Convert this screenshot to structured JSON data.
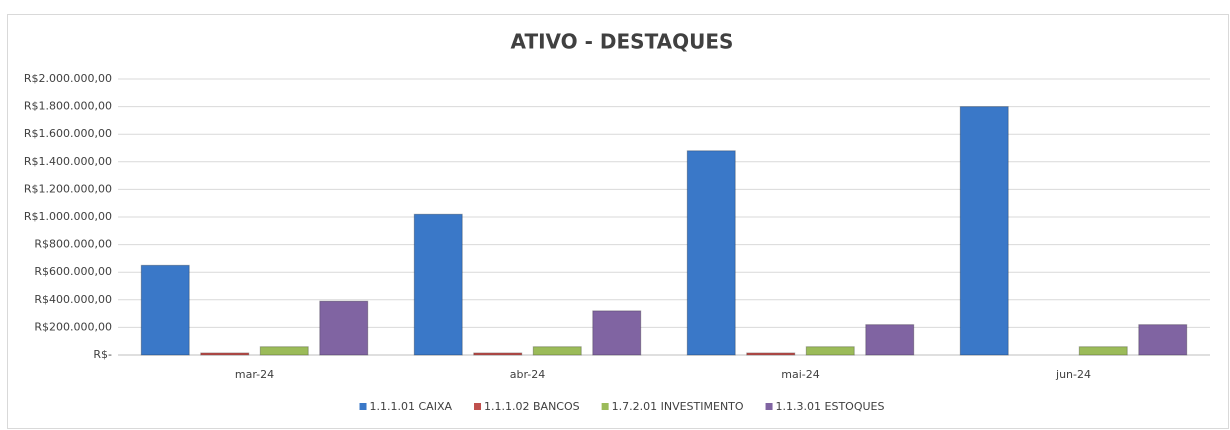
{
  "chart_data": {
    "type": "bar",
    "title": "ATIVO - DESTAQUES",
    "categories": [
      "mar-24",
      "abr-24",
      "mai-24",
      "jun-24"
    ],
    "series": [
      {
        "name": "1.1.1.01 CAIXA",
        "color": "#3a78c8",
        "values": [
          650000,
          1020000,
          1480000,
          1800000
        ]
      },
      {
        "name": "1.1.1.02 BANCOS",
        "color": "#c0504d",
        "values": [
          15000,
          15000,
          15000,
          0
        ]
      },
      {
        "name": "1.7.2.01 INVESTIMENTO",
        "color": "#9bbb59",
        "values": [
          60000,
          60000,
          60000,
          60000
        ]
      },
      {
        "name": "1.1.3.01 ESTOQUES",
        "color": "#8064a2",
        "values": [
          390000,
          320000,
          220000,
          220000
        ]
      }
    ],
    "ylim": [
      0,
      2000000
    ],
    "yticks": [
      {
        "value": 0,
        "label": "R$-"
      },
      {
        "value": 200000,
        "label": "R$200.000,00"
      },
      {
        "value": 400000,
        "label": "R$400.000,00"
      },
      {
        "value": 600000,
        "label": "R$600.000,00"
      },
      {
        "value": 800000,
        "label": "R$800.000,00"
      },
      {
        "value": 1000000,
        "label": "R$1.000.000,00"
      },
      {
        "value": 1200000,
        "label": "R$1.200.000,00"
      },
      {
        "value": 1400000,
        "label": "R$1.400.000,00"
      },
      {
        "value": 1600000,
        "label": "R$1.600.000,00"
      },
      {
        "value": 1800000,
        "label": "R$1.800.000,00"
      },
      {
        "value": 2000000,
        "label": "R$2.000.000,00"
      }
    ],
    "grid": true,
    "legend": "bottom"
  }
}
